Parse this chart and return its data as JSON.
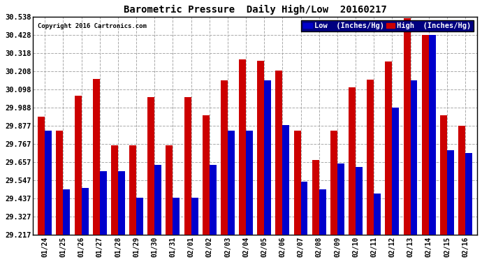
{
  "title": "Barometric Pressure  Daily High/Low  20160217",
  "copyright": "Copyright 2016 Cartronics.com",
  "legend_low": "Low  (Inches/Hg)",
  "legend_high": "High  (Inches/Hg)",
  "low_color": "#0000cc",
  "high_color": "#cc0000",
  "background_color": "#ffffff",
  "grid_color": "#aaaaaa",
  "yticks": [
    29.217,
    29.327,
    29.437,
    29.547,
    29.657,
    29.767,
    29.877,
    29.988,
    30.098,
    30.208,
    30.318,
    30.428,
    30.538
  ],
  "dates": [
    "01/24",
    "01/25",
    "01/26",
    "01/27",
    "01/28",
    "01/29",
    "01/30",
    "01/31",
    "02/01",
    "02/02",
    "02/03",
    "02/04",
    "02/05",
    "02/06",
    "02/07",
    "02/08",
    "02/09",
    "02/10",
    "02/11",
    "02/12",
    "02/13",
    "02/14",
    "02/15",
    "02/16"
  ],
  "high_values": [
    29.93,
    29.847,
    30.06,
    30.16,
    29.76,
    29.76,
    30.05,
    29.76,
    30.05,
    29.94,
    30.15,
    30.28,
    30.27,
    30.21,
    29.847,
    29.67,
    29.847,
    30.11,
    30.157,
    30.267,
    30.53,
    30.427,
    29.94,
    29.877
  ],
  "low_values": [
    29.847,
    29.49,
    29.5,
    29.6,
    29.6,
    29.44,
    29.64,
    29.44,
    29.44,
    29.64,
    29.847,
    29.847,
    30.15,
    29.88,
    29.54,
    29.49,
    29.647,
    29.627,
    29.467,
    29.987,
    30.15,
    30.427,
    29.727,
    29.71
  ],
  "ylim_low": 29.217,
  "ylim_high": 30.538,
  "bar_width": 0.38,
  "figwidth": 6.9,
  "figheight": 3.75,
  "dpi": 100
}
